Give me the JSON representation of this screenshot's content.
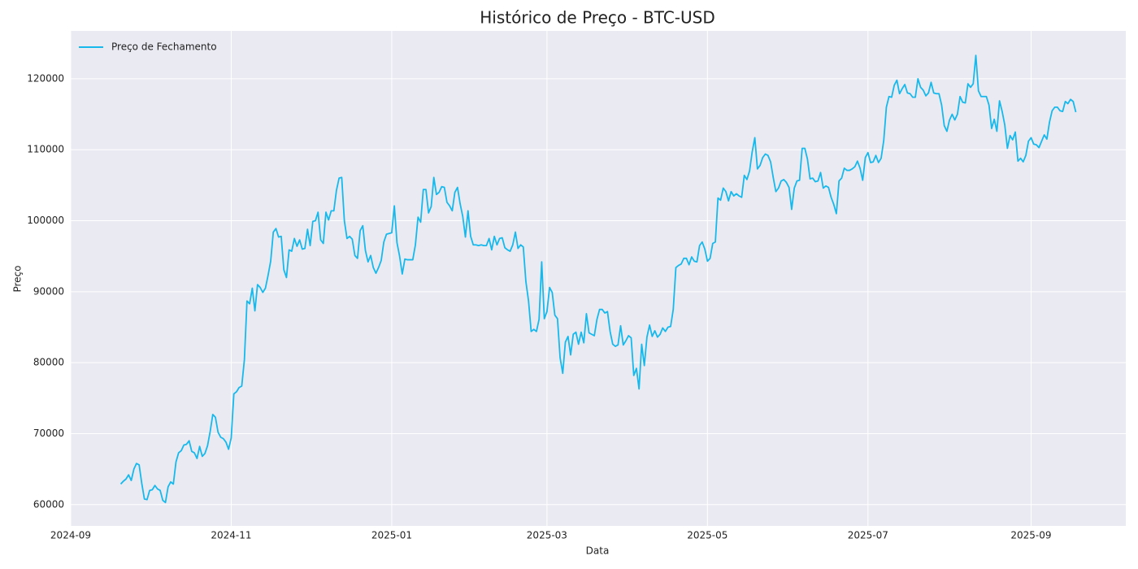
{
  "chart_data": {
    "type": "line",
    "title": "Histórico de Preço - BTC-USD",
    "x_label": "Data",
    "y_label": "Preço",
    "x": [
      "2024-09-20",
      "2024-09-21",
      "2024-09-22",
      "2024-09-23",
      "2024-09-24",
      "2024-09-25",
      "2024-09-26",
      "2024-09-27",
      "2024-09-28",
      "2024-09-29",
      "2024-09-30",
      "2024-10-01",
      "2024-10-02",
      "2024-10-03",
      "2024-10-04",
      "2024-10-05",
      "2024-10-06",
      "2024-10-07",
      "2024-10-08",
      "2024-10-09",
      "2024-10-10",
      "2024-10-11",
      "2024-10-12",
      "2024-10-13",
      "2024-10-14",
      "2024-10-15",
      "2024-10-16",
      "2024-10-17",
      "2024-10-18",
      "2024-10-19",
      "2024-10-20",
      "2024-10-21",
      "2024-10-22",
      "2024-10-23",
      "2024-10-24",
      "2024-10-25",
      "2024-10-26",
      "2024-10-27",
      "2024-10-28",
      "2024-10-29",
      "2024-10-30",
      "2024-10-31",
      "2024-11-01",
      "2024-11-02",
      "2024-11-03",
      "2024-11-04",
      "2024-11-05",
      "2024-11-06",
      "2024-11-07",
      "2024-11-08",
      "2024-11-09",
      "2024-11-10",
      "2024-11-11",
      "2024-11-12",
      "2024-11-13",
      "2024-11-14",
      "2024-11-15",
      "2024-11-16",
      "2024-11-17",
      "2024-11-18",
      "2024-11-19",
      "2024-11-20",
      "2024-11-21",
      "2024-11-22",
      "2024-11-23",
      "2024-11-24",
      "2024-11-25",
      "2024-11-26",
      "2024-11-27",
      "2024-11-28",
      "2024-11-29",
      "2024-11-30",
      "2024-12-01",
      "2024-12-02",
      "2024-12-03",
      "2024-12-04",
      "2024-12-05",
      "2024-12-06",
      "2024-12-07",
      "2024-12-08",
      "2024-12-09",
      "2024-12-10",
      "2024-12-11",
      "2024-12-12",
      "2024-12-13",
      "2024-12-14",
      "2024-12-15",
      "2024-12-16",
      "2024-12-17",
      "2024-12-18",
      "2024-12-19",
      "2024-12-20",
      "2024-12-21",
      "2024-12-22",
      "2024-12-23",
      "2024-12-24",
      "2024-12-25",
      "2024-12-26",
      "2024-12-27",
      "2024-12-28",
      "2024-12-29",
      "2024-12-30",
      "2024-12-31",
      "2025-01-01",
      "2025-01-02",
      "2025-01-03",
      "2025-01-04",
      "2025-01-05",
      "2025-01-06",
      "2025-01-07",
      "2025-01-08",
      "2025-01-09",
      "2025-01-10",
      "2025-01-11",
      "2025-01-12",
      "2025-01-13",
      "2025-01-14",
      "2025-01-15",
      "2025-01-16",
      "2025-01-17",
      "2025-01-18",
      "2025-01-19",
      "2025-01-20",
      "2025-01-21",
      "2025-01-22",
      "2025-01-23",
      "2025-01-24",
      "2025-01-25",
      "2025-01-26",
      "2025-01-27",
      "2025-01-28",
      "2025-01-29",
      "2025-01-30",
      "2025-01-31",
      "2025-02-01",
      "2025-02-02",
      "2025-02-03",
      "2025-02-04",
      "2025-02-05",
      "2025-02-06",
      "2025-02-07",
      "2025-02-08",
      "2025-02-09",
      "2025-02-10",
      "2025-02-11",
      "2025-02-12",
      "2025-02-13",
      "2025-02-14",
      "2025-02-15",
      "2025-02-16",
      "2025-02-17",
      "2025-02-18",
      "2025-02-19",
      "2025-02-20",
      "2025-02-21",
      "2025-02-22",
      "2025-02-23",
      "2025-02-24",
      "2025-02-25",
      "2025-02-26",
      "2025-02-27",
      "2025-02-28",
      "2025-03-01",
      "2025-03-02",
      "2025-03-03",
      "2025-03-04",
      "2025-03-05",
      "2025-03-06",
      "2025-03-07",
      "2025-03-08",
      "2025-03-09",
      "2025-03-10",
      "2025-03-11",
      "2025-03-12",
      "2025-03-13",
      "2025-03-14",
      "2025-03-15",
      "2025-03-16",
      "2025-03-17",
      "2025-03-18",
      "2025-03-19",
      "2025-03-20",
      "2025-03-21",
      "2025-03-22",
      "2025-03-23",
      "2025-03-24",
      "2025-03-25",
      "2025-03-26",
      "2025-03-27",
      "2025-03-28",
      "2025-03-29",
      "2025-03-30",
      "2025-03-31",
      "2025-04-01",
      "2025-04-02",
      "2025-04-03",
      "2025-04-04",
      "2025-04-05",
      "2025-04-06",
      "2025-04-07",
      "2025-04-08",
      "2025-04-09",
      "2025-04-10",
      "2025-04-11",
      "2025-04-12",
      "2025-04-13",
      "2025-04-14",
      "2025-04-15",
      "2025-04-16",
      "2025-04-17",
      "2025-04-18",
      "2025-04-19",
      "2025-04-20",
      "2025-04-21",
      "2025-04-22",
      "2025-04-23",
      "2025-04-24",
      "2025-04-25",
      "2025-04-26",
      "2025-04-27",
      "2025-04-28",
      "2025-04-29",
      "2025-04-30",
      "2025-05-01",
      "2025-05-02",
      "2025-05-03",
      "2025-05-04",
      "2025-05-05",
      "2025-05-06",
      "2025-05-07",
      "2025-05-08",
      "2025-05-09",
      "2025-05-10",
      "2025-05-11",
      "2025-05-12",
      "2025-05-13",
      "2025-05-14",
      "2025-05-15",
      "2025-05-16",
      "2025-05-17",
      "2025-05-18",
      "2025-05-19",
      "2025-05-20",
      "2025-05-21",
      "2025-05-22",
      "2025-05-23",
      "2025-05-24",
      "2025-05-25",
      "2025-05-26",
      "2025-05-27",
      "2025-05-28",
      "2025-05-29",
      "2025-05-30",
      "2025-05-31",
      "2025-06-01",
      "2025-06-02",
      "2025-06-03",
      "2025-06-04",
      "2025-06-05",
      "2025-06-06",
      "2025-06-07",
      "2025-06-08",
      "2025-06-09",
      "2025-06-10",
      "2025-06-11",
      "2025-06-12",
      "2025-06-13",
      "2025-06-14",
      "2025-06-15",
      "2025-06-16",
      "2025-06-17",
      "2025-06-18",
      "2025-06-19",
      "2025-06-20",
      "2025-06-21",
      "2025-06-22",
      "2025-06-23",
      "2025-06-24",
      "2025-06-25",
      "2025-06-26",
      "2025-06-27",
      "2025-06-28",
      "2025-06-29",
      "2025-06-30",
      "2025-07-01",
      "2025-07-02",
      "2025-07-03",
      "2025-07-04",
      "2025-07-05",
      "2025-07-06",
      "2025-07-07",
      "2025-07-08",
      "2025-07-09",
      "2025-07-10",
      "2025-07-11",
      "2025-07-12",
      "2025-07-13",
      "2025-07-14",
      "2025-07-15",
      "2025-07-16",
      "2025-07-17",
      "2025-07-18",
      "2025-07-19",
      "2025-07-20",
      "2025-07-21",
      "2025-07-22",
      "2025-07-23",
      "2025-07-24",
      "2025-07-25",
      "2025-07-26",
      "2025-07-27",
      "2025-07-28",
      "2025-07-29",
      "2025-07-30",
      "2025-07-31",
      "2025-08-01",
      "2025-08-02",
      "2025-08-03",
      "2025-08-04",
      "2025-08-05",
      "2025-08-06",
      "2025-08-07",
      "2025-08-08",
      "2025-08-09",
      "2025-08-10",
      "2025-08-11",
      "2025-08-12",
      "2025-08-13",
      "2025-08-14",
      "2025-08-15",
      "2025-08-16",
      "2025-08-17",
      "2025-08-18",
      "2025-08-19",
      "2025-08-20",
      "2025-08-21",
      "2025-08-22",
      "2025-08-23",
      "2025-08-24",
      "2025-08-25",
      "2025-08-26",
      "2025-08-27",
      "2025-08-28",
      "2025-08-29",
      "2025-08-30",
      "2025-08-31",
      "2025-09-01",
      "2025-09-02",
      "2025-09-03",
      "2025-09-04",
      "2025-09-05",
      "2025-09-06",
      "2025-09-07",
      "2025-09-08",
      "2025-09-09",
      "2025-09-10",
      "2025-09-11",
      "2025-09-12",
      "2025-09-13",
      "2025-09-14",
      "2025-09-15",
      "2025-09-16",
      "2025-09-17",
      "2025-09-18"
    ],
    "series": [
      {
        "name": "Preço de Fechamento",
        "color": "#17b9ec",
        "values": [
          62900,
          63300,
          63600,
          64200,
          63400,
          65000,
          65800,
          65600,
          63000,
          60800,
          60700,
          62000,
          62100,
          62700,
          62200,
          62000,
          60600,
          60300,
          62500,
          63200,
          62900,
          66000,
          67300,
          67600,
          68400,
          68500,
          69000,
          67500,
          67300,
          66500,
          68200,
          66800,
          67200,
          68300,
          70300,
          72700,
          72300,
          70200,
          69500,
          69300,
          68800,
          67800,
          69400,
          75600,
          75900,
          76500,
          76700,
          80400,
          88700,
          88300,
          90500,
          87300,
          91000,
          90600,
          89900,
          90500,
          92300,
          94300,
          98400,
          98900,
          97700,
          97800,
          93100,
          92000,
          95900,
          95700,
          97500,
          96400,
          97300,
          96000,
          96100,
          98800,
          96500,
          99900,
          100000,
          101200,
          97300,
          96800,
          101200,
          100100,
          101400,
          101400,
          104300,
          106000,
          106100,
          100000,
          97500,
          97800,
          97400,
          95100,
          94700,
          98600,
          99300,
          95800,
          94200,
          95100,
          93400,
          92600,
          93400,
          94400,
          97000,
          98100,
          98200,
          98300,
          102100,
          96900,
          95000,
          92500,
          94600,
          94500,
          94500,
          94500,
          96600,
          100500,
          99800,
          104400,
          104400,
          101100,
          102000,
          106100,
          103700,
          104000,
          104800,
          104700,
          102600,
          102100,
          101400,
          104000,
          104700,
          102400,
          100600,
          97700,
          101400,
          97800,
          96600,
          96600,
          96500,
          96600,
          96500,
          96500,
          97500,
          95900,
          97800,
          96600,
          97500,
          97600,
          96200,
          95900,
          95700,
          96600,
          98400,
          96100,
          96600,
          96300,
          91400,
          88700,
          84400,
          84700,
          84400,
          86100,
          94200,
          86200,
          87200,
          90600,
          89900,
          86700,
          86200,
          80700,
          78500,
          82900,
          83700,
          81100,
          84000,
          84300,
          82600,
          84300,
          82800,
          86900,
          84200,
          84000,
          83800,
          86100,
          87500,
          87500,
          87000,
          87200,
          84400,
          82600,
          82300,
          82500,
          85200,
          82500,
          83100,
          83800,
          83500,
          78200,
          79200,
          76300,
          82600,
          79600,
          83600,
          85300,
          83700,
          84500,
          83600,
          84000,
          84900,
          84400,
          85000,
          85100,
          87500,
          93400,
          93700,
          93900,
          94700,
          94700,
          93800,
          94900,
          94300,
          94200,
          96500,
          97000,
          96000,
          94300,
          94700,
          96800,
          97000,
          103200,
          102900,
          104600,
          104100,
          102800,
          104100,
          103500,
          103800,
          103500,
          103300,
          106400,
          105800,
          107000,
          109700,
          111700,
          107300,
          107800,
          108900,
          109400,
          109200,
          108300,
          106100,
          104100,
          104600,
          105600,
          105800,
          105400,
          104700,
          101600,
          104600,
          105600,
          105700,
          110200,
          110200,
          108700,
          105900,
          106000,
          105500,
          105600,
          106800,
          104600,
          104900,
          104700,
          103300,
          102300,
          101000,
          105600,
          106000,
          107400,
          107100,
          107100,
          107300,
          107600,
          108400,
          107400,
          105700,
          108900,
          109600,
          108200,
          108300,
          109200,
          108200,
          108800,
          111300,
          116000,
          117500,
          117400,
          119100,
          119800,
          117900,
          118600,
          119200,
          118000,
          117900,
          117400,
          117400,
          120000,
          118800,
          118400,
          117600,
          118000,
          119500,
          118000,
          117900,
          117900,
          116300,
          113400,
          112600,
          114200,
          115000,
          114200,
          115000,
          117500,
          116700,
          116600,
          119300,
          118800,
          119300,
          123300,
          118300,
          117500,
          117500,
          117500,
          116300,
          113000,
          114300,
          112600,
          116900,
          115400,
          113500,
          110200,
          112000,
          111400,
          112500,
          108400,
          108800,
          108300,
          109200,
          111200,
          111700,
          110800,
          110700,
          110300,
          111200,
          112100,
          111500,
          113900,
          115500,
          116000,
          116000,
          115500,
          115400,
          116800,
          116500,
          117100,
          116800,
          115300
        ]
      }
    ],
    "xlim": [
      "2024-09-01",
      "2025-10-07"
    ],
    "xticks": [
      "2024-09",
      "2024-11",
      "2025-01",
      "2025-03",
      "2025-05",
      "2025-07",
      "2025-09"
    ],
    "ylim": [
      57000,
      126750
    ],
    "yticks": [
      60000,
      70000,
      80000,
      90000,
      100000,
      110000,
      120000
    ],
    "grid": true,
    "legend": "upper left"
  }
}
